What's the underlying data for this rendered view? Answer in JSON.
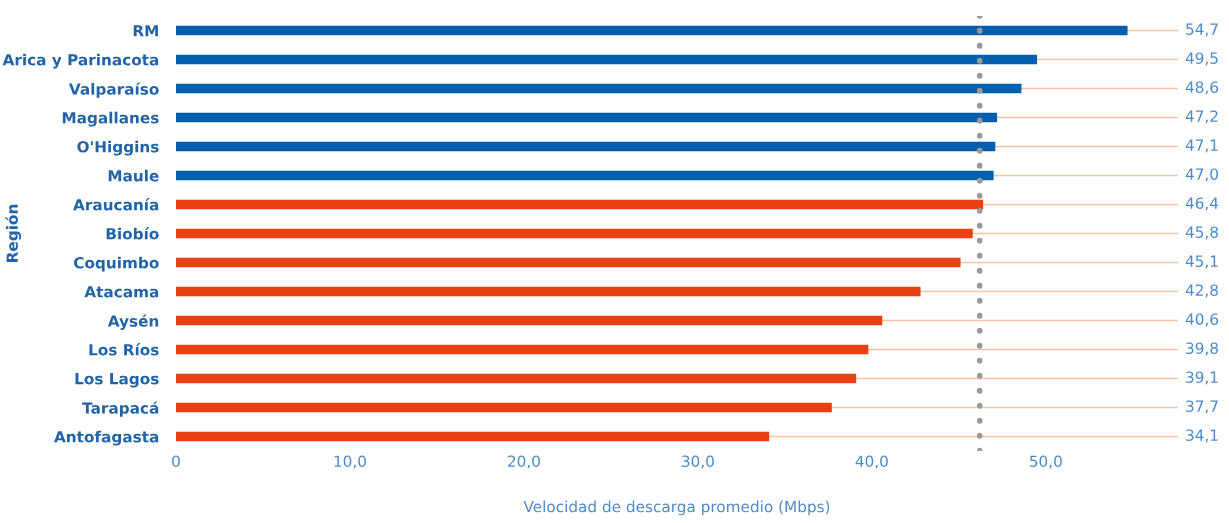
{
  "chart_data": {
    "type": "bar",
    "orientation": "horizontal",
    "xlabel": "Velocidad de descarga promedio (Mbps)",
    "ylabel": "Región",
    "categories": [
      "RM",
      "Arica y Parinacota",
      "Valparaíso",
      "Magallanes",
      "O'Higgins",
      "Maule",
      "Araucanía",
      "Biobío",
      "Coquimbo",
      "Atacama",
      "Aysén",
      "Los Ríos",
      "Los Lagos",
      "Tarapacá",
      "Antofagasta"
    ],
    "values": [
      54.7,
      49.5,
      48.6,
      47.2,
      47.1,
      47.0,
      46.4,
      45.8,
      45.1,
      42.8,
      40.6,
      39.8,
      39.1,
      37.7,
      34.1
    ],
    "value_labels": [
      "54,7",
      "49,5",
      "48,6",
      "47,2",
      "47,1",
      "47,0",
      "46,4",
      "45,8",
      "45,1",
      "42,8",
      "40,6",
      "39,8",
      "39,1",
      "37,7",
      "34,1"
    ],
    "colors": [
      "#0060ae",
      "#0060ae",
      "#0060ae",
      "#0060ae",
      "#0060ae",
      "#0060ae",
      "#e84012",
      "#e84012",
      "#e84012",
      "#e84012",
      "#e84012",
      "#e84012",
      "#e84012",
      "#e84012",
      "#e84012"
    ],
    "xlim": [
      0,
      57.6
    ],
    "xticks": [
      0,
      {
        "value": 10,
        "label": "10,0"
      },
      {
        "value": 20,
        "label": "20,0"
      },
      {
        "value": 30,
        "label": "30,0"
      },
      {
        "value": 40,
        "label": "40,0"
      },
      {
        "value": 50,
        "label": "50,0"
      }
    ],
    "grid": "y",
    "ref_lines": [
      {
        "axis": "x",
        "value": 46.2,
        "color": "#9a9a9a",
        "line_style": "dotted"
      }
    ]
  }
}
